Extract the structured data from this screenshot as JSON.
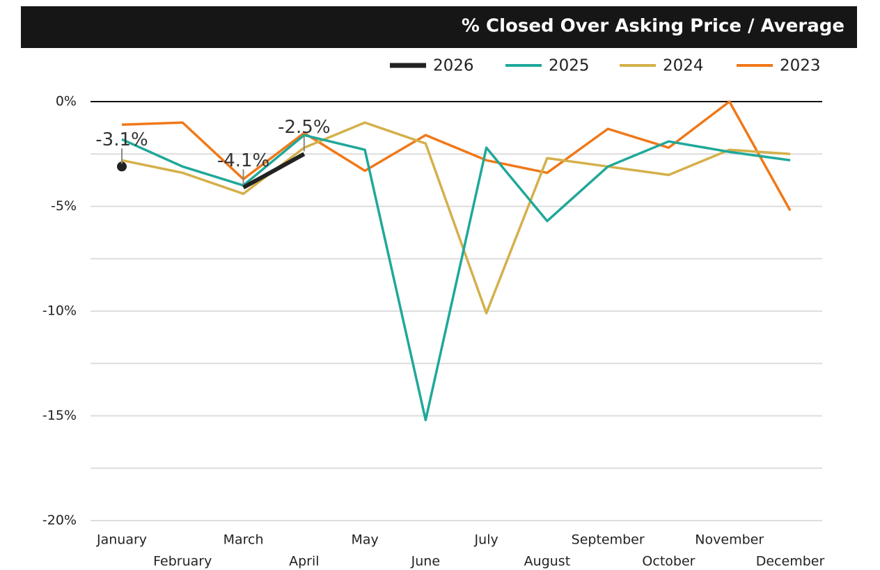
{
  "chart_data": {
    "type": "line",
    "title": "% Closed Over Asking Price / Average",
    "categories": [
      "January",
      "February",
      "March",
      "April",
      "May",
      "June",
      "July",
      "August",
      "September",
      "October",
      "November",
      "December"
    ],
    "series": [
      {
        "name": "2026",
        "color": "#222222",
        "values": [
          -3.1,
          null,
          -4.1,
          -2.5,
          null,
          null,
          null,
          null,
          null,
          null,
          null,
          null
        ],
        "value_labels": [
          "-3.1%",
          null,
          "-4.1%",
          "-2.5%",
          null,
          null,
          null,
          null,
          null,
          null,
          null,
          null
        ]
      },
      {
        "name": "2025",
        "color": "#1fa899",
        "values": [
          -1.8,
          -3.1,
          -4.0,
          -1.6,
          -2.3,
          -15.2,
          -2.2,
          -5.7,
          -3.1,
          -1.9,
          -2.4,
          -2.8
        ]
      },
      {
        "name": "2024",
        "color": "#d4b04a",
        "values": [
          -2.8,
          -3.4,
          -4.4,
          -2.2,
          -1.0,
          -2.0,
          -10.1,
          -2.7,
          -3.1,
          -3.5,
          -2.3,
          -2.5
        ]
      },
      {
        "name": "2023",
        "color": "#f07818",
        "values": [
          -1.1,
          -1.0,
          -3.7,
          -1.5,
          -3.3,
          -1.6,
          -2.8,
          -3.4,
          -1.3,
          -2.2,
          0,
          -5.2
        ]
      }
    ],
    "ylim": [
      -20,
      0
    ],
    "yticks": [
      {
        "value": 0,
        "label": "0%"
      },
      {
        "value": -5,
        "label": "-5%"
      },
      {
        "value": -10,
        "label": "-10%"
      },
      {
        "value": -15,
        "label": "-15%"
      },
      {
        "value": -20,
        "label": "-20%"
      }
    ],
    "minor_grid": [
      -2.5,
      -7.5,
      -12.5,
      -17.5
    ],
    "grid": true,
    "legend": "top-right"
  }
}
